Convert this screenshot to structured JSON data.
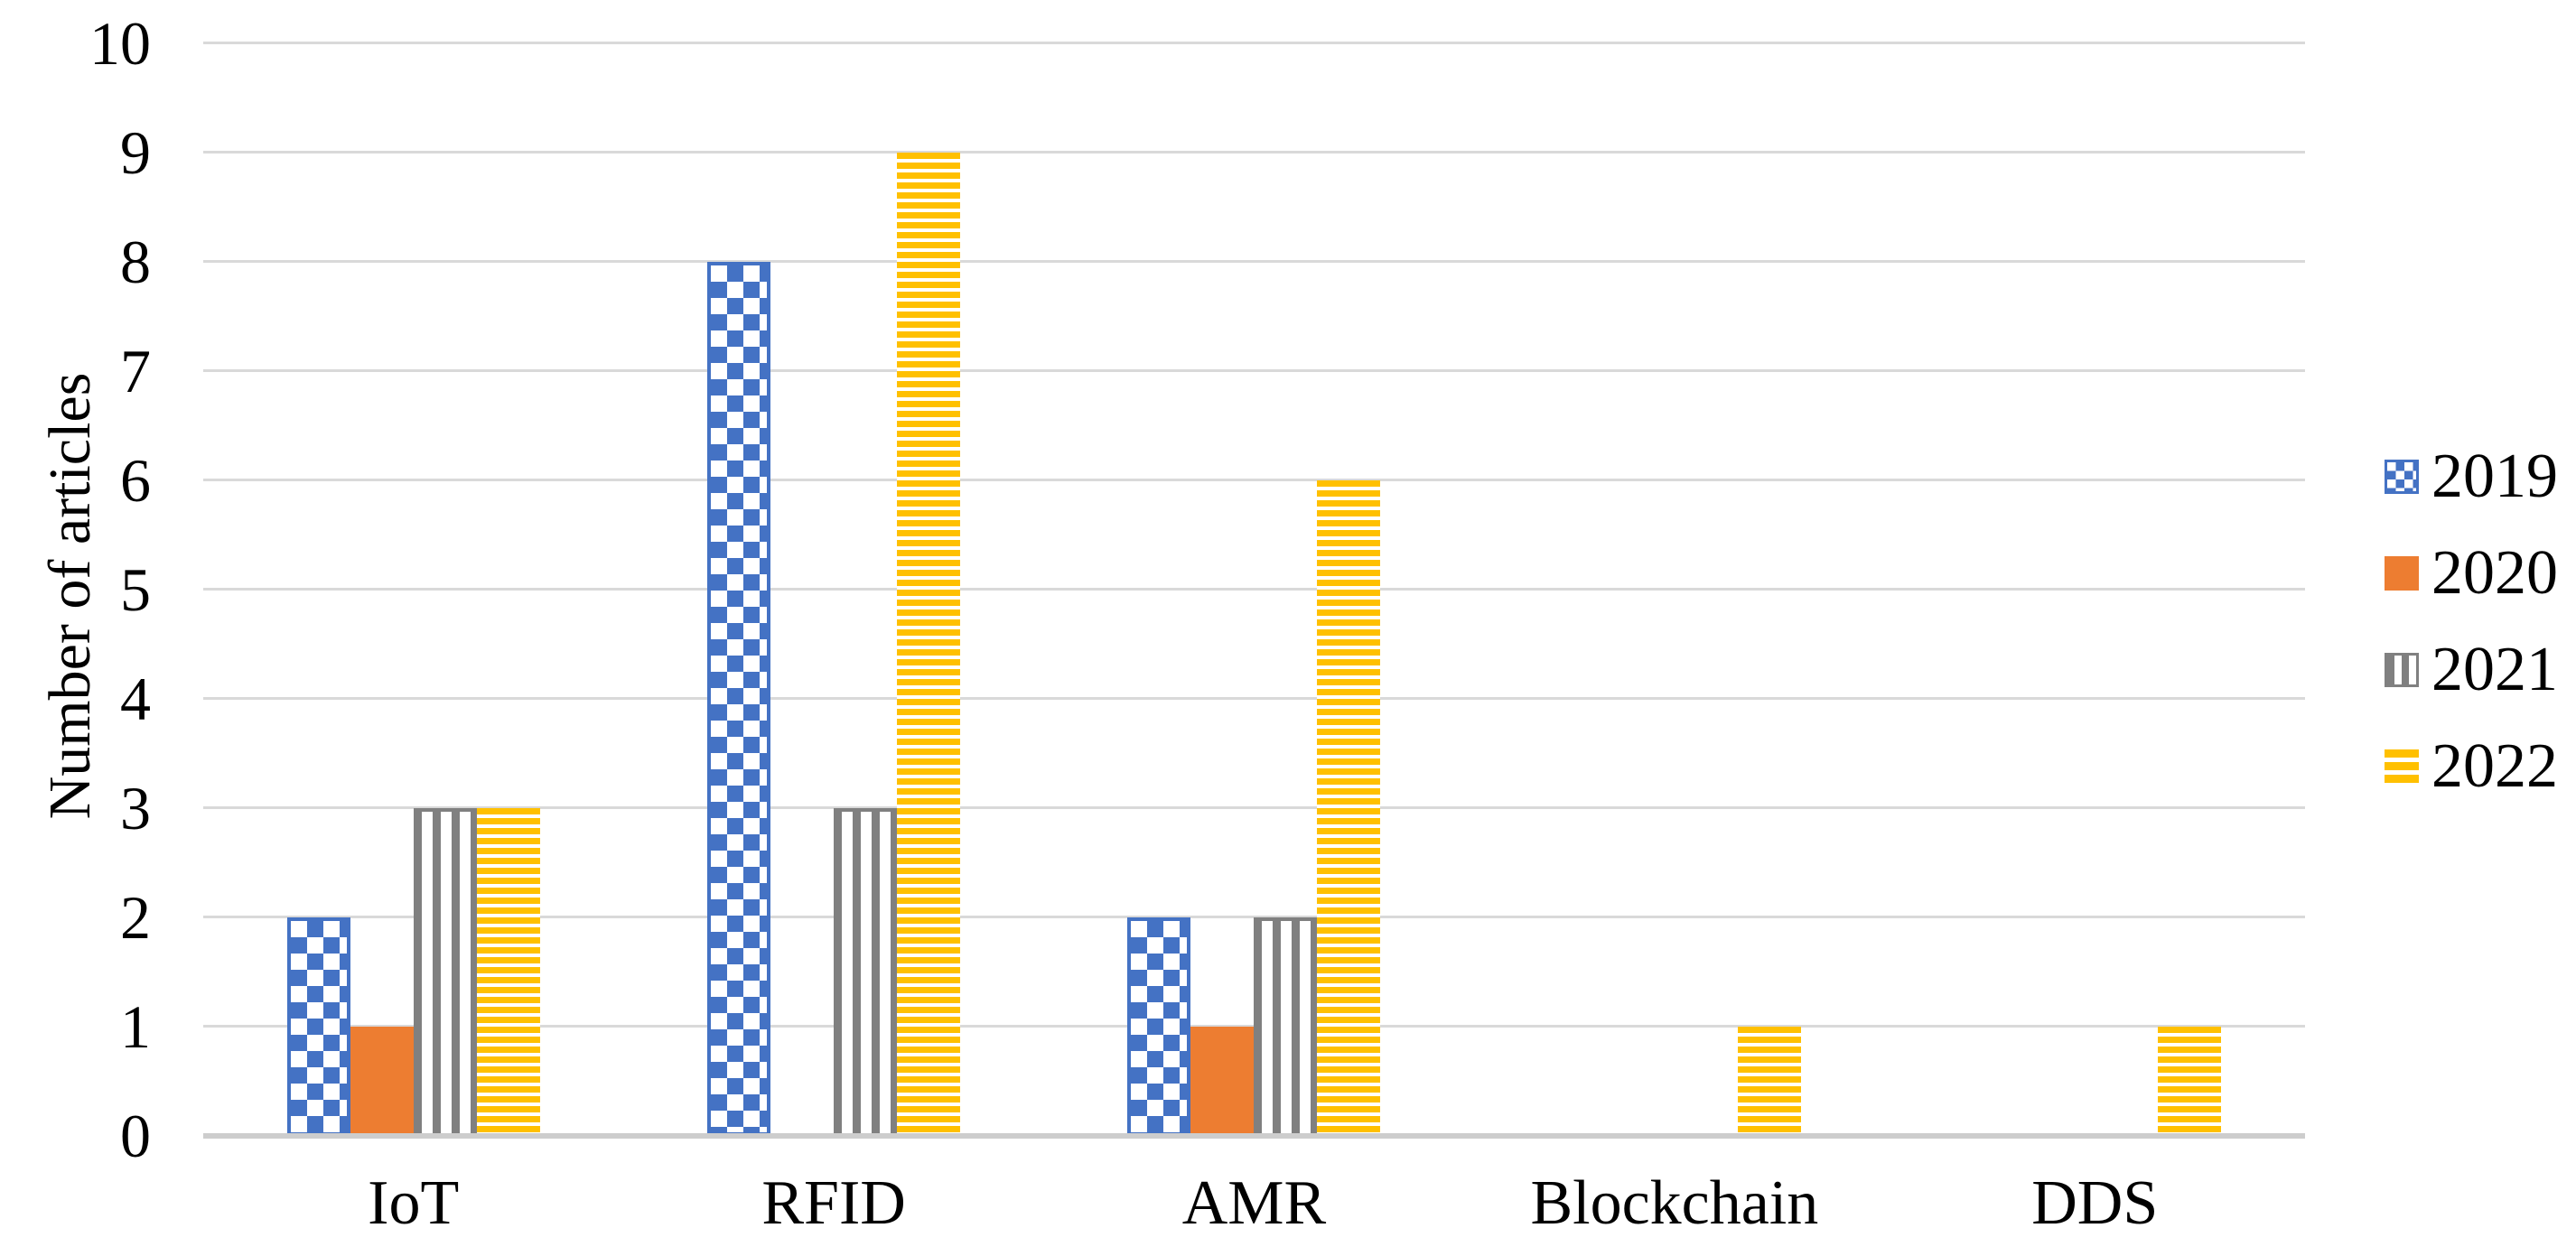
{
  "chart_data": {
    "type": "bar",
    "title": "",
    "xlabel": "",
    "ylabel": "Number of articles",
    "categories": [
      "IoT",
      "RFID",
      "AMR",
      "Blockchain",
      "DDS"
    ],
    "series": [
      {
        "name": "2019",
        "pattern": "checker",
        "color": "#4472C4",
        "values": [
          2,
          8,
          2,
          0,
          0
        ]
      },
      {
        "name": "2020",
        "pattern": "solid",
        "color": "#ED7D31",
        "values": [
          1,
          0,
          1,
          0,
          0
        ]
      },
      {
        "name": "2021",
        "pattern": "vstripe",
        "color": "#808080",
        "values": [
          3,
          3,
          2,
          0,
          0
        ]
      },
      {
        "name": "2022",
        "pattern": "hstripe",
        "color": "#FFC000",
        "values": [
          3,
          9,
          6,
          1,
          1
        ]
      }
    ],
    "ylim": [
      0,
      10
    ],
    "ytick_step": 1,
    "yticks": [
      0,
      1,
      2,
      3,
      4,
      5,
      6,
      7,
      8,
      9,
      10
    ],
    "grid": true,
    "legend_position": "right",
    "colors": {
      "gridline": "#D9D9D9",
      "baseline": "#CDCDCD",
      "text": "#000000",
      "background": "#FFFFFF",
      "pattern_background": "#FFFFFF"
    }
  }
}
